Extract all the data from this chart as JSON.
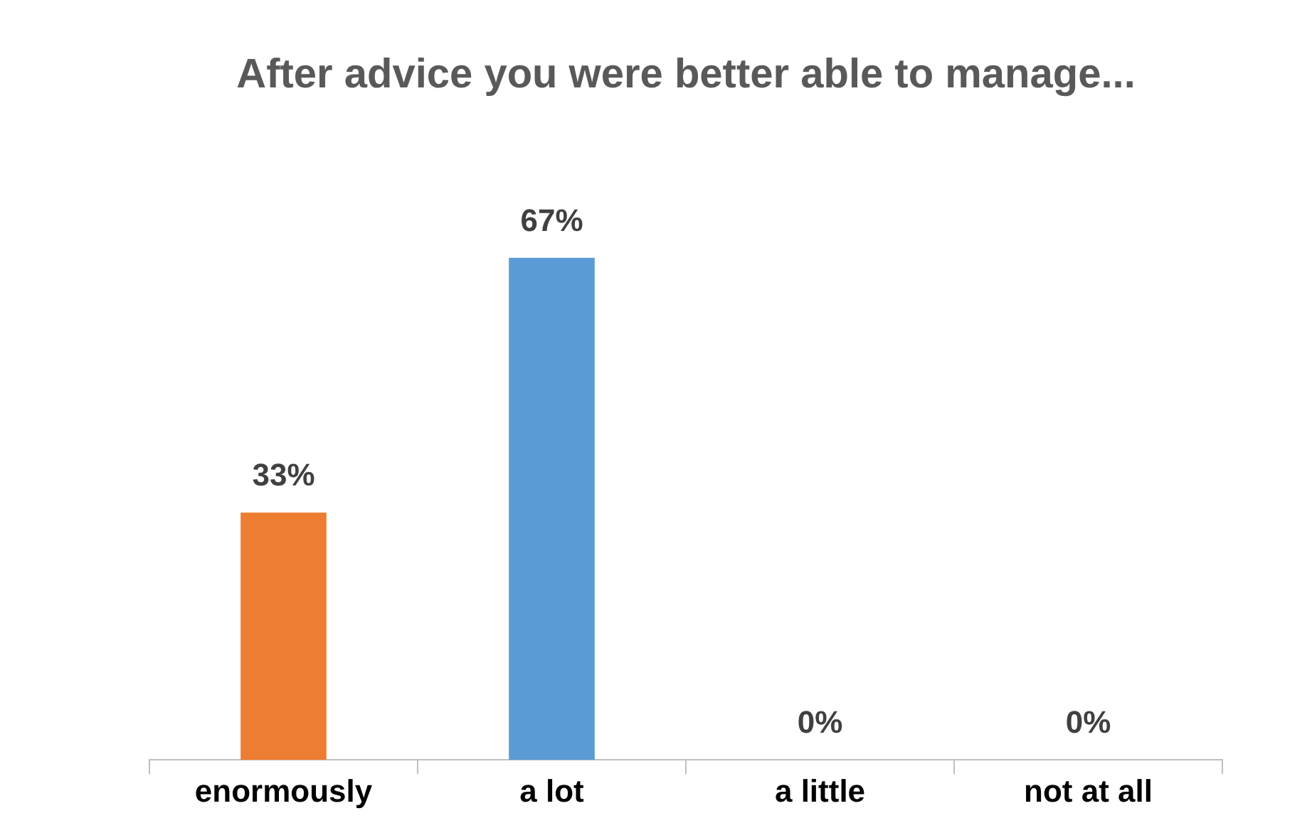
{
  "chart_data": {
    "type": "bar",
    "title": "After advice you were better able to manage...",
    "categories": [
      "enormously",
      "a lot",
      "a little",
      "not at all"
    ],
    "values": [
      33,
      67,
      0,
      0
    ],
    "colors": [
      "#ed7d31",
      "#5b9bd5",
      "#a5a5a5",
      "#ffc000"
    ],
    "value_labels": [
      "33%",
      "67%",
      "0%",
      "0%"
    ]
  }
}
